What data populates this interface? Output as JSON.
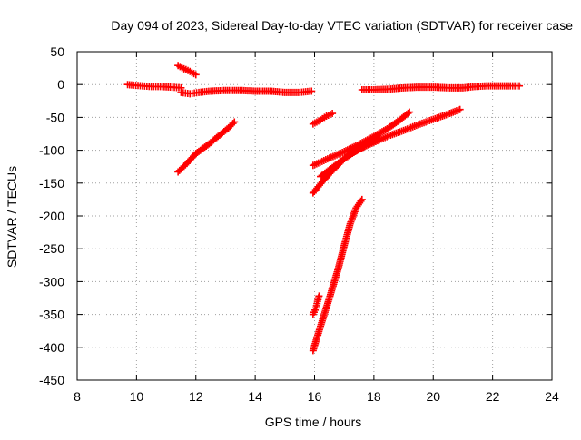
{
  "chart_data": {
    "type": "scatter",
    "title": "Day 094 of 2023, Sidereal Day-to-day VTEC variation (SDTVAR) for receiver case",
    "xlabel": "GPS time / hours",
    "ylabel": "SDTVAR / TECUs",
    "xlim": [
      8,
      24
    ],
    "ylim": [
      -450,
      50
    ],
    "x_ticks": [
      8,
      10,
      12,
      14,
      16,
      18,
      20,
      22,
      24
    ],
    "y_ticks": [
      50,
      0,
      -50,
      -100,
      -150,
      -200,
      -250,
      -300,
      -350,
      -400,
      -450
    ],
    "grid": true,
    "legend": "none",
    "marker": "+",
    "color": "#ff0000",
    "series": [
      {
        "points": [
          [
            9.7,
            0
          ],
          [
            9.9,
            -1
          ],
          [
            10.2,
            -2
          ],
          [
            10.5,
            -3
          ],
          [
            10.8,
            -3
          ],
          [
            11.2,
            -4
          ],
          [
            11.5,
            -5
          ]
        ]
      },
      {
        "points": [
          [
            11.4,
            29
          ],
          [
            11.6,
            24
          ],
          [
            11.8,
            20
          ],
          [
            12.0,
            15
          ]
        ]
      },
      {
        "points": [
          [
            11.5,
            -12
          ],
          [
            11.8,
            -14
          ],
          [
            12.1,
            -12
          ],
          [
            12.5,
            -10
          ],
          [
            13.0,
            -9
          ],
          [
            13.5,
            -9
          ],
          [
            14.0,
            -10
          ],
          [
            14.5,
            -10
          ],
          [
            15.0,
            -12
          ],
          [
            15.5,
            -12
          ],
          [
            15.9,
            -10
          ]
        ]
      },
      {
        "points": [
          [
            11.4,
            -133
          ],
          [
            11.7,
            -120
          ],
          [
            12.0,
            -105
          ],
          [
            12.4,
            -92
          ],
          [
            12.8,
            -77
          ],
          [
            13.1,
            -66
          ],
          [
            13.3,
            -57
          ]
        ]
      },
      {
        "points": [
          [
            15.95,
            -60
          ],
          [
            16.2,
            -54
          ],
          [
            16.4,
            -48
          ],
          [
            16.6,
            -44
          ]
        ]
      },
      {
        "points": [
          [
            15.95,
            -123
          ],
          [
            16.5,
            -112
          ],
          [
            17.0,
            -102
          ],
          [
            17.5,
            -91
          ],
          [
            18.0,
            -79
          ],
          [
            18.5,
            -66
          ],
          [
            18.9,
            -53
          ],
          [
            19.2,
            -42
          ]
        ]
      },
      {
        "points": [
          [
            15.95,
            -165
          ],
          [
            16.3,
            -146
          ],
          [
            16.6,
            -131
          ],
          [
            17.0,
            -113
          ],
          [
            17.5,
            -98
          ],
          [
            18.0,
            -88
          ],
          [
            18.5,
            -78
          ],
          [
            19.0,
            -70
          ],
          [
            19.5,
            -61
          ],
          [
            20.0,
            -53
          ],
          [
            20.5,
            -45
          ],
          [
            20.9,
            -38
          ]
        ]
      },
      {
        "points": [
          [
            16.2,
            -140
          ],
          [
            16.7,
            -123
          ],
          [
            17.2,
            -106
          ],
          [
            17.7,
            -94
          ],
          [
            18.2,
            -82
          ]
        ]
      },
      {
        "points": [
          [
            15.95,
            -405
          ],
          [
            16.2,
            -368
          ],
          [
            16.5,
            -325
          ],
          [
            16.8,
            -280
          ],
          [
            17.0,
            -245
          ],
          [
            17.2,
            -212
          ],
          [
            17.4,
            -188
          ],
          [
            17.6,
            -175
          ]
        ]
      },
      {
        "points": [
          [
            15.95,
            -350
          ],
          [
            16.05,
            -340
          ],
          [
            16.1,
            -330
          ],
          [
            16.15,
            -322
          ]
        ]
      },
      {
        "points": [
          [
            17.6,
            -8
          ],
          [
            18.0,
            -8
          ],
          [
            18.5,
            -7
          ],
          [
            19.0,
            -5
          ],
          [
            19.5,
            -4
          ],
          [
            20.0,
            -4
          ],
          [
            20.5,
            -5
          ],
          [
            21.0,
            -5
          ],
          [
            21.4,
            -3
          ],
          [
            21.8,
            -2
          ],
          [
            22.2,
            -2
          ],
          [
            22.6,
            -2
          ],
          [
            22.9,
            -2
          ]
        ]
      }
    ]
  }
}
